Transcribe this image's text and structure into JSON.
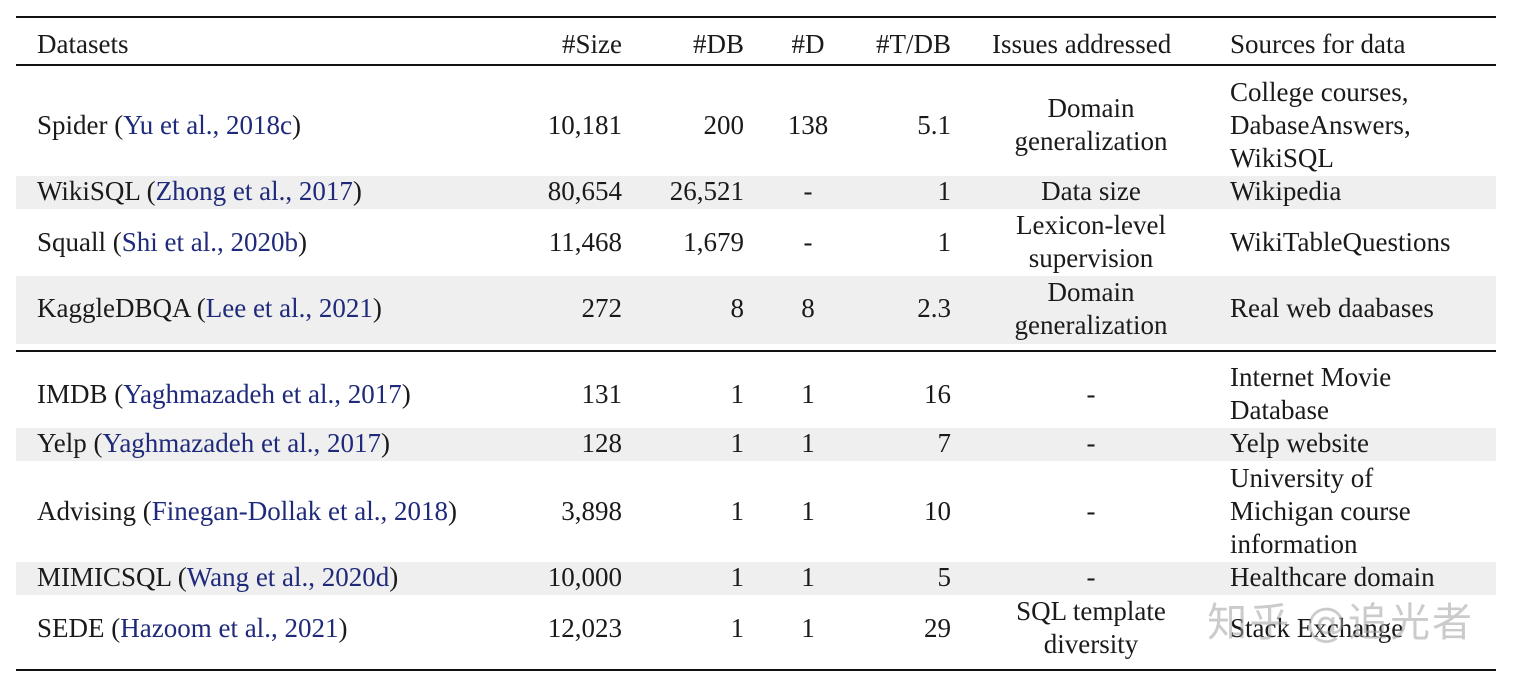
{
  "table": {
    "headers": {
      "dataset": "Datasets",
      "size": "#Size",
      "db": "#DB",
      "d": "#D",
      "tdb": "#T/DB",
      "issues": "Issues addressed",
      "sources": "Sources for data"
    },
    "rows": [
      {
        "name": "Spider",
        "cite": "Yu et al., 2018c",
        "size": "10,181",
        "db": "200",
        "d": "138",
        "tdb": "5.1",
        "issues": "Domain generalization",
        "sources": "College courses, DabaseAnswers, WikiSQL"
      },
      {
        "name": "WikiSQL",
        "cite": "Zhong et al., 2017",
        "size": "80,654",
        "db": "26,521",
        "d": "-",
        "tdb": "1",
        "issues": "Data size",
        "sources": "Wikipedia"
      },
      {
        "name": "Squall",
        "cite": "Shi et al., 2020b",
        "size": "11,468",
        "db": "1,679",
        "d": "-",
        "tdb": "1",
        "issues": "Lexicon-level supervision",
        "sources": "WikiTableQuestions"
      },
      {
        "name": "KaggleDBQA",
        "cite": "Lee et al., 2021",
        "size": "272",
        "db": "8",
        "d": "8",
        "tdb": "2.3",
        "issues": "Domain generalization",
        "sources": "Real web daabases"
      },
      {
        "name": "IMDB",
        "cite": "Yaghmazadeh et al., 2017",
        "size": "131",
        "db": "1",
        "d": "1",
        "tdb": "16",
        "issues": "-",
        "sources": "Internet Movie Database"
      },
      {
        "name": "Yelp",
        "cite": "Yaghmazadeh et al., 2017",
        "size": "128",
        "db": "1",
        "d": "1",
        "tdb": "7",
        "issues": "-",
        "sources": "Yelp website"
      },
      {
        "name": "Advising",
        "cite": "Finegan-Dollak et al., 2018",
        "size": "3,898",
        "db": "1",
        "d": "1",
        "tdb": "10",
        "issues": "-",
        "sources": "University of Michigan course information"
      },
      {
        "name": "MIMICSQL",
        "cite": "Wang et al., 2020d",
        "size": "10,000",
        "db": "1",
        "d": "1",
        "tdb": "5",
        "issues": "-",
        "sources": "Healthcare domain"
      },
      {
        "name": "SEDE",
        "cite": "Hazoom et al., 2021",
        "size": "12,023",
        "db": "1",
        "d": "1",
        "tdb": "29",
        "issues": "SQL template diversity",
        "sources": "Stack Exchange"
      }
    ]
  },
  "watermark": "知乎 @追光者"
}
